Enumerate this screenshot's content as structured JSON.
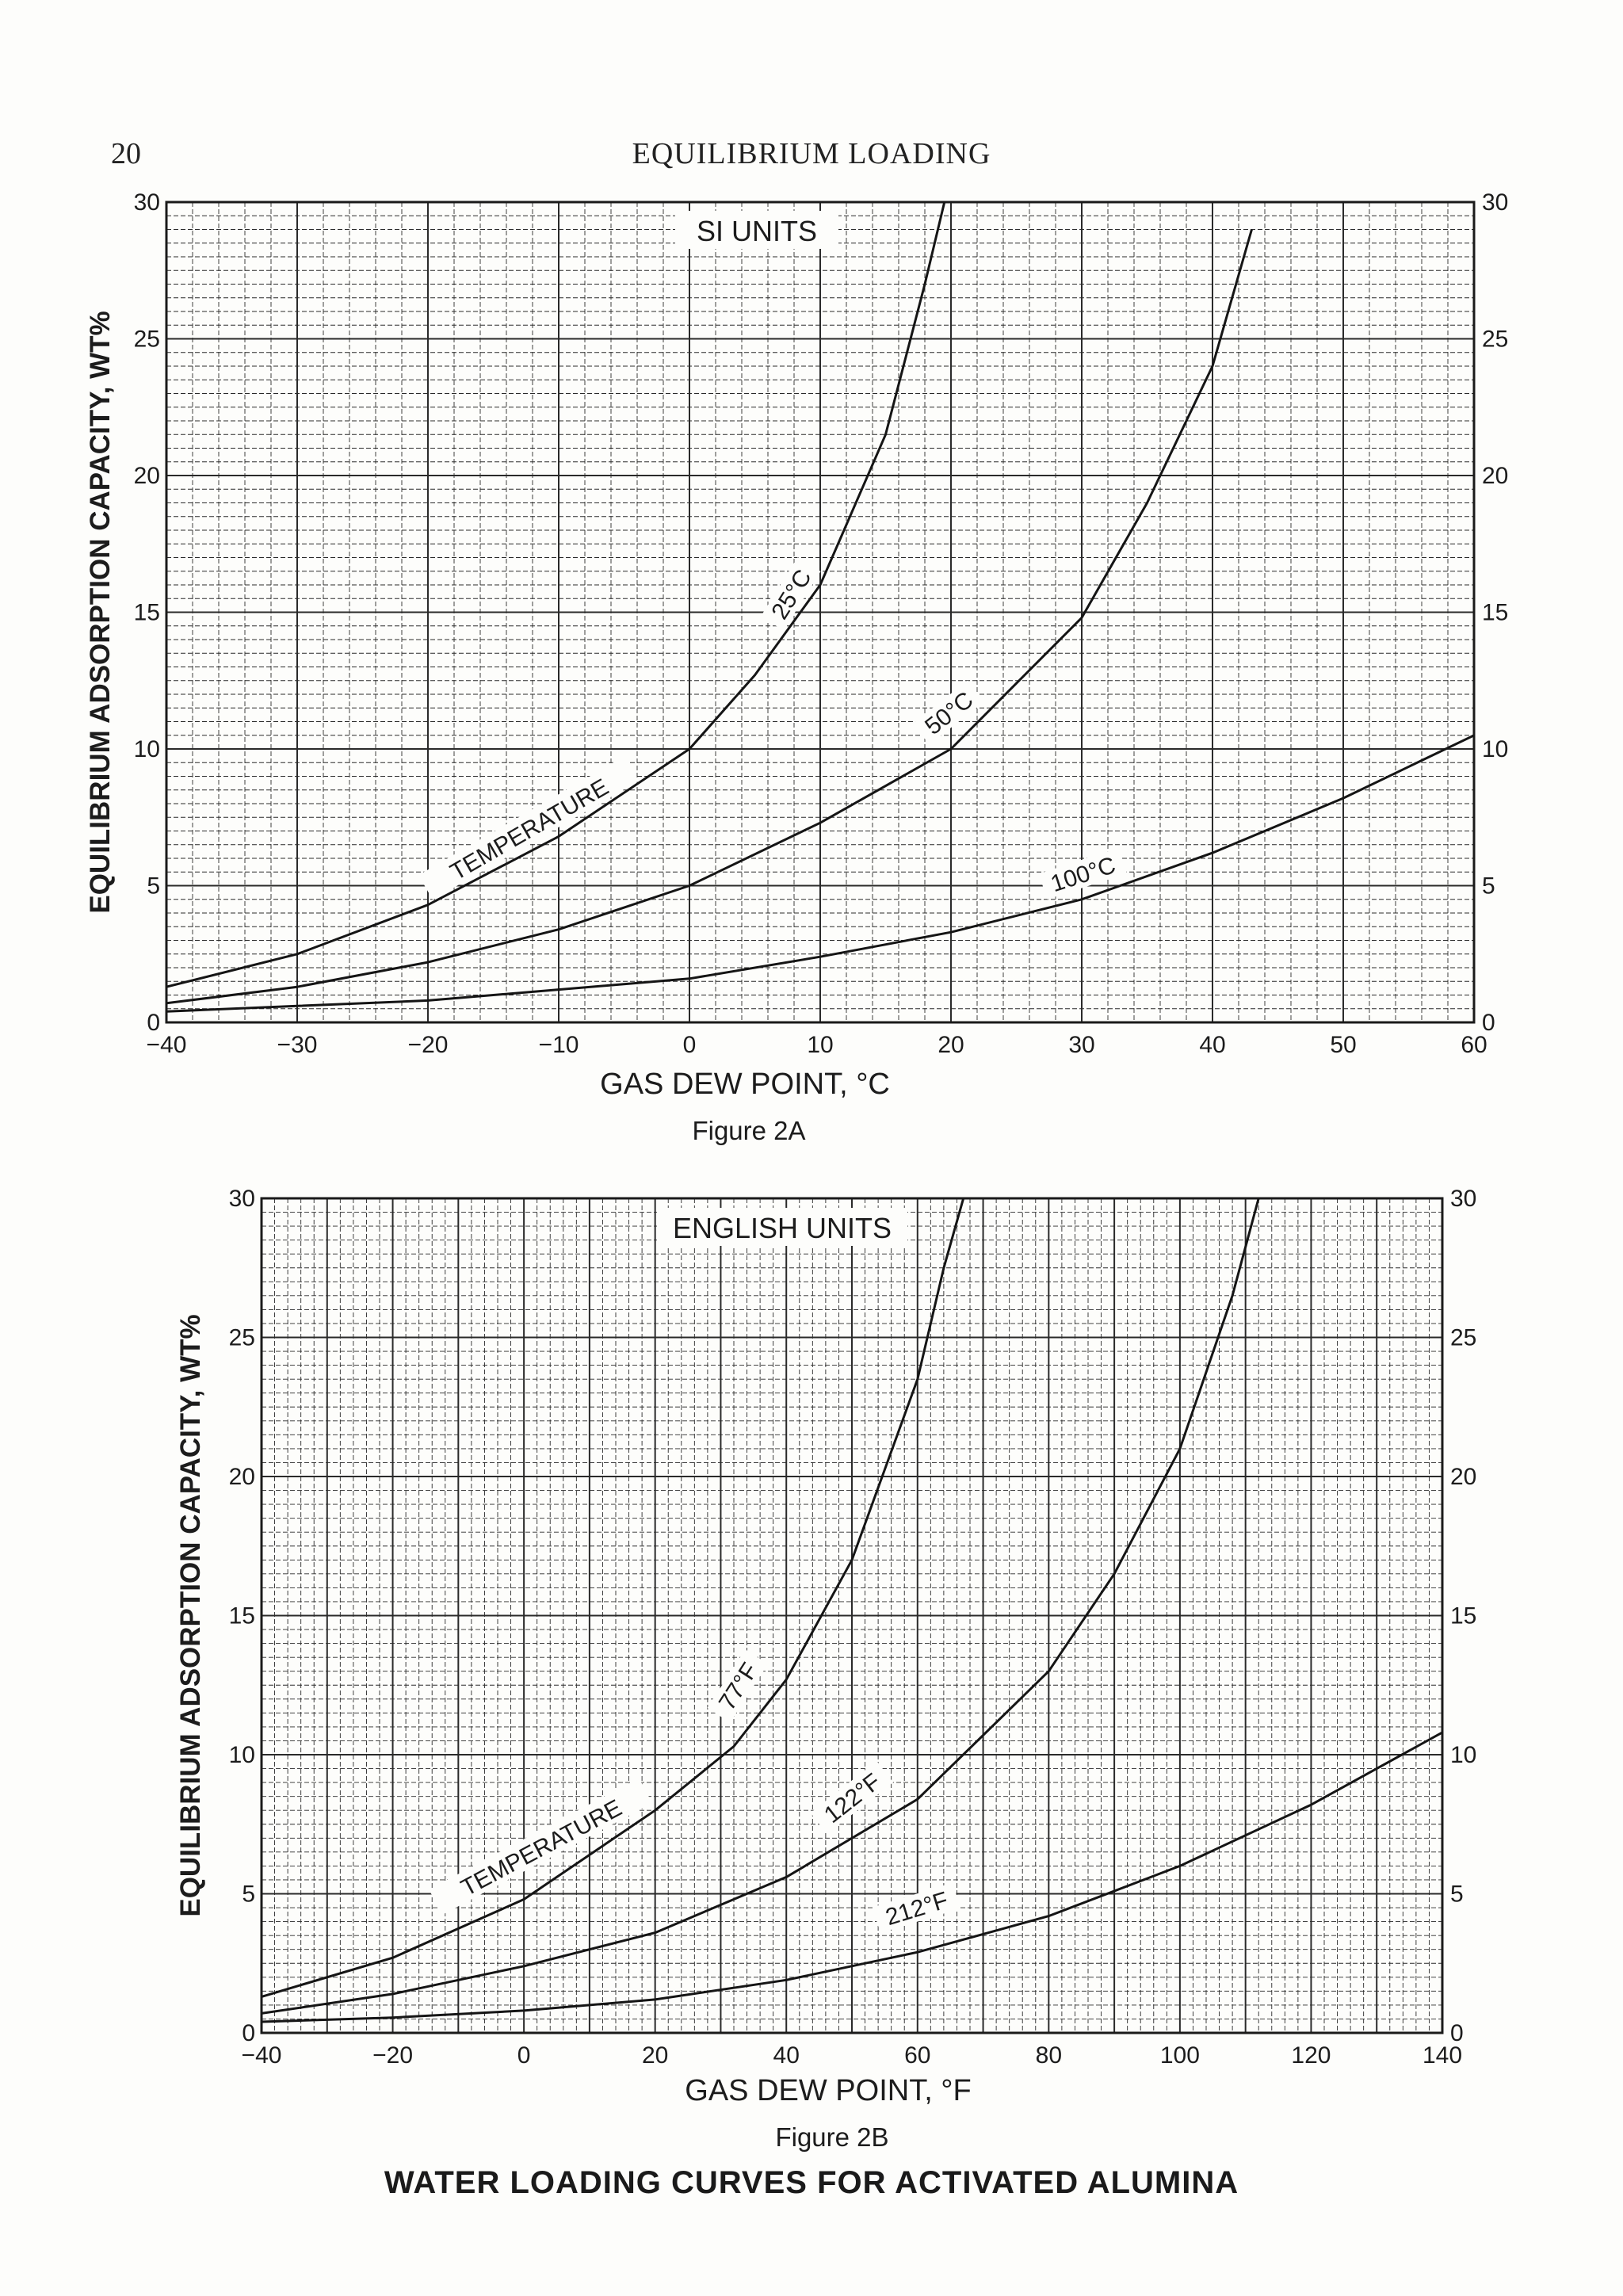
{
  "page": {
    "number": "20",
    "running_head": "EQUILIBRIUM LOADING",
    "caption": "WATER LOADING CURVES FOR ACTIVATED ALUMINA"
  },
  "chart_data": [
    {
      "type": "line",
      "figure": "Figure 2A",
      "title": "SI UNITS",
      "xlabel": "GAS DEW POINT, °C",
      "ylabel": "EQUILIBRIUM ADSORPTION CAPACITY, WT%",
      "xlim": [
        -40,
        60
      ],
      "ylim": [
        0,
        30
      ],
      "xticks": [
        -40,
        -30,
        -20,
        -10,
        0,
        10,
        20,
        30,
        40,
        50,
        60
      ],
      "yticks": [
        0,
        5,
        10,
        15,
        20,
        25,
        30
      ],
      "grid": true,
      "annotation": "TEMPERATURE",
      "series": [
        {
          "name": "25°C",
          "x": [
            -40,
            -30,
            -20,
            -10,
            0,
            5,
            10,
            15,
            18,
            20
          ],
          "y": [
            1.3,
            2.5,
            4.3,
            6.8,
            10,
            12.7,
            16,
            21.5,
            27,
            31
          ]
        },
        {
          "name": "50°C",
          "x": [
            -40,
            -30,
            -20,
            -10,
            0,
            10,
            20,
            30,
            35,
            40,
            43
          ],
          "y": [
            0.7,
            1.3,
            2.2,
            3.4,
            5,
            7.3,
            10,
            14.8,
            19,
            24,
            29
          ]
        },
        {
          "name": "100°C",
          "x": [
            -40,
            -30,
            -20,
            -10,
            0,
            10,
            20,
            30,
            40,
            50,
            60
          ],
          "y": [
            0.4,
            0.6,
            0.8,
            1.2,
            1.6,
            2.4,
            3.3,
            4.5,
            6.2,
            8.2,
            10.5
          ]
        }
      ]
    },
    {
      "type": "line",
      "figure": "Figure 2B",
      "title": "ENGLISH UNITS",
      "xlabel": "GAS DEW POINT, °F",
      "ylabel": "EQUILIBRIUM ADSORPTION CAPACITY, WT%",
      "xlim": [
        -40,
        140
      ],
      "ylim": [
        0,
        30
      ],
      "xticks": [
        -40,
        -20,
        0,
        20,
        40,
        60,
        80,
        100,
        120,
        140
      ],
      "yticks": [
        0,
        5,
        10,
        15,
        20,
        25,
        30
      ],
      "grid": true,
      "annotation": "TEMPERATURE",
      "series": [
        {
          "name": "77°F",
          "x": [
            -40,
            -20,
            0,
            20,
            32,
            40,
            50,
            60,
            64,
            67
          ],
          "y": [
            1.3,
            2.7,
            4.8,
            8,
            10.3,
            12.7,
            17,
            23.5,
            27.5,
            30
          ]
        },
        {
          "name": "122°F",
          "x": [
            -40,
            -20,
            0,
            20,
            40,
            60,
            80,
            90,
            100,
            108,
            112
          ],
          "y": [
            0.7,
            1.4,
            2.4,
            3.6,
            5.6,
            8.4,
            13,
            16.5,
            21,
            26.5,
            30
          ]
        },
        {
          "name": "212°F",
          "x": [
            -40,
            -20,
            0,
            20,
            40,
            60,
            80,
            100,
            120,
            140
          ],
          "y": [
            0.4,
            0.55,
            0.8,
            1.2,
            1.9,
            2.9,
            4.2,
            6,
            8.2,
            10.8
          ]
        }
      ]
    }
  ]
}
